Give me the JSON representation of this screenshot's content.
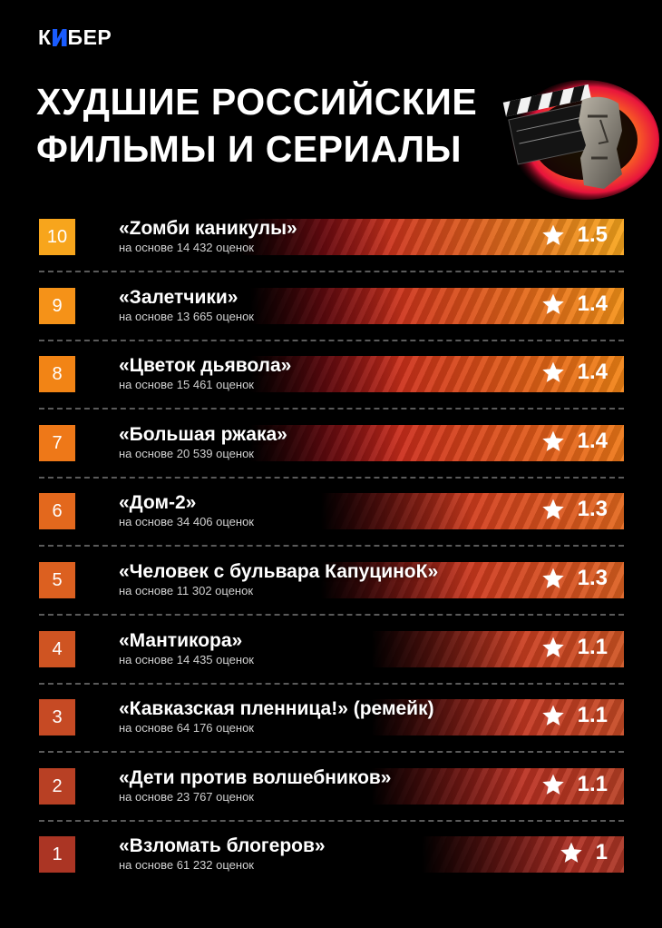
{
  "brand": {
    "pre": "К",
    "post": "БЕР"
  },
  "title": {
    "line1": "ХУДШИЕ РОССИЙСКИЕ",
    "line2": "ФИЛЬМЫ И СЕРИАЛЫ"
  },
  "items": [
    {
      "rank": "10",
      "name": "«Zомби каникулы»",
      "votes": "на основе 14 432 оценок",
      "rating": "1.5",
      "color": "#f7a51c",
      "bar_start": 0.32
    },
    {
      "rank": "9",
      "name": "«Залетчики»",
      "votes": "на основе 13 665 оценок",
      "rating": "1.4",
      "color": "#f59218",
      "bar_start": 0.34
    },
    {
      "rank": "8",
      "name": "«Цветок дьявола»",
      "votes": "на основе 15 461 оценок",
      "rating": "1.4",
      "color": "#f28415",
      "bar_start": 0.34
    },
    {
      "rank": "7",
      "name": "«Большая ржака»",
      "votes": "на основе 20 539 оценок",
      "rating": "1.4",
      "color": "#ee7818",
      "bar_start": 0.34
    },
    {
      "rank": "6",
      "name": "«Дом-2»",
      "votes": "на основе 34 406 оценок",
      "rating": "1.3",
      "color": "#e3681d",
      "bar_start": 0.48
    },
    {
      "rank": "5",
      "name": "«Человек с бульвара КапуциноК»",
      "votes": "на основе 11 302 оценок",
      "rating": "1.3",
      "color": "#dc6020",
      "bar_start": 0.48
    },
    {
      "rank": "4",
      "name": "«Мантикора»",
      "votes": "на основе 14 435 оценок",
      "rating": "1.1",
      "color": "#cf5422",
      "bar_start": 0.58
    },
    {
      "rank": "3",
      "name": "«Кавказская пленница!» (ремейк)",
      "votes": "на основе 64 176 оценок",
      "rating": "1.1",
      "color": "#c64a24",
      "bar_start": 0.58
    },
    {
      "rank": "2",
      "name": "«Дети против волшебников»",
      "votes": "на основе 23 767 оценок",
      "rating": "1.1",
      "color": "#b84024",
      "bar_start": 0.58
    },
    {
      "rank": "1",
      "name": "«Взломать блогеров»",
      "votes": "на основе 61 232 оценок",
      "rating": "1",
      "color": "#ab3524",
      "bar_start": 0.68
    }
  ]
}
